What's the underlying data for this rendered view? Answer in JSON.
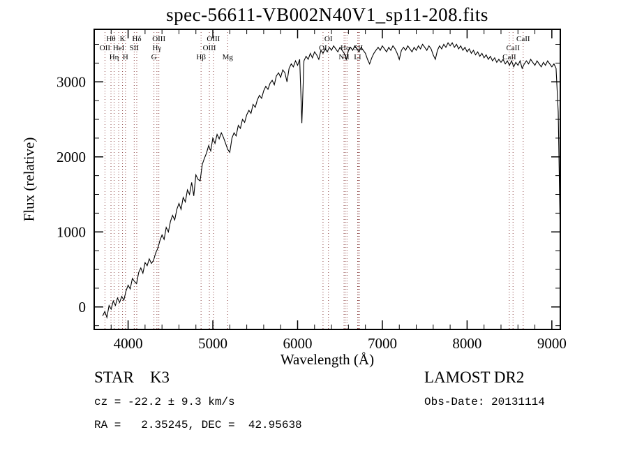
{
  "title": "spec-56611-VB002N40V1_sp11-208.fits",
  "chart_data": {
    "type": "line",
    "title": "spec-56611-VB002N40V1_sp11-208.fits",
    "xlabel": "Wavelength (Å)",
    "ylabel": "Flux (relative)",
    "xlim": [
      3600,
      9100
    ],
    "ylim": [
      -300,
      3700
    ],
    "x_ticks": [
      4000,
      5000,
      6000,
      7000,
      8000,
      9000
    ],
    "y_ticks": [
      0,
      1000,
      2000,
      3000
    ],
    "x_minor_step": 200,
    "y_minor_step": 250,
    "line_color": "#000000",
    "marker_color": "#8b4040",
    "x_start": 3700,
    "x_step": 25,
    "flux": [
      -120,
      -60,
      -140,
      20,
      -30,
      80,
      20,
      120,
      60,
      140,
      90,
      210,
      290,
      240,
      380,
      340,
      310,
      460,
      520,
      450,
      590,
      550,
      640,
      580,
      620,
      720,
      780,
      880,
      960,
      900,
      1060,
      1000,
      1140,
      1220,
      1160,
      1300,
      1380,
      1300,
      1460,
      1400,
      1560,
      1500,
      1660,
      1480,
      1760,
      1700,
      1680,
      1900,
      1980,
      2050,
      2150,
      2080,
      2250,
      2180,
      2300,
      2240,
      2320,
      2260,
      2180,
      2100,
      2060,
      2250,
      2320,
      2280,
      2420,
      2380,
      2500,
      2460,
      2560,
      2620,
      2580,
      2700,
      2660,
      2760,
      2820,
      2780,
      2880,
      2940,
      2900,
      2980,
      3020,
      2960,
      3080,
      3120,
      3060,
      3160,
      3120,
      3000,
      3180,
      3240,
      3200,
      3280,
      3220,
      3300,
      2450,
      3280,
      3340,
      3300,
      3380,
      3320,
      3400,
      3360,
      3300,
      3420,
      3380,
      3440,
      3400,
      3460,
      3420,
      3480,
      3440,
      3400,
      3460,
      3420,
      3380,
      3300,
      3420,
      3460,
      3420,
      3480,
      3440,
      3400,
      3460,
      3420,
      3380,
      3300,
      3240,
      3320,
      3380,
      3420,
      3460,
      3420,
      3480,
      3440,
      3400,
      3460,
      3420,
      3480,
      3440,
      3380,
      3300,
      3420,
      3460,
      3420,
      3480,
      3440,
      3400,
      3460,
      3420,
      3480,
      3440,
      3500,
      3460,
      3420,
      3480,
      3440,
      3360,
      3300,
      3420,
      3480,
      3440,
      3500,
      3460,
      3520,
      3480,
      3520,
      3460,
      3500,
      3440,
      3480,
      3420,
      3460,
      3400,
      3440,
      3380,
      3420,
      3360,
      3400,
      3340,
      3380,
      3320,
      3360,
      3300,
      3340,
      3280,
      3320,
      3260,
      3300,
      3260,
      3300,
      3240,
      3280,
      3220,
      3280,
      3200,
      3260,
      3220,
      3280,
      3180,
      3240,
      3280,
      3240,
      3300,
      3260,
      3220,
      3280,
      3240,
      3200,
      3260,
      3220,
      3280,
      3240,
      3200,
      3240,
      3180,
      2600,
      900
    ],
    "spectral_lines": [
      {
        "label": "OII",
        "wavelength": 3727,
        "row": 2
      },
      {
        "label": "Hθ",
        "wavelength": 3798,
        "row": 1
      },
      {
        "label": "Hη",
        "wavelength": 3835,
        "row": 3
      },
      {
        "label": "HeI",
        "wavelength": 3889,
        "row": 2
      },
      {
        "label": "K",
        "wavelength": 3934,
        "row": 1
      },
      {
        "label": "H",
        "wavelength": 3969,
        "row": 3
      },
      {
        "label": "SII",
        "wavelength": 4072,
        "row": 2
      },
      {
        "label": "Hδ",
        "wavelength": 4102,
        "row": 1
      },
      {
        "label": "G",
        "wavelength": 4305,
        "row": 3
      },
      {
        "label": "Hγ",
        "wavelength": 4340,
        "row": 2
      },
      {
        "label": "OIII",
        "wavelength": 4363,
        "row": 1
      },
      {
        "label": "Hβ",
        "wavelength": 4861,
        "row": 3
      },
      {
        "label": "OIII",
        "wavelength": 4959,
        "row": 2
      },
      {
        "label": "OIII",
        "wavelength": 5007,
        "row": 1
      },
      {
        "label": "Mg",
        "wavelength": 5175,
        "row": 3
      },
      {
        "label": "OI",
        "wavelength": 6300,
        "row": 2
      },
      {
        "label": "OI",
        "wavelength": 6364,
        "row": 1
      },
      {
        "label": "NII",
        "wavelength": 6548,
        "row": 3
      },
      {
        "label": "Hα",
        "wavelength": 6563,
        "row": 2
      },
      {
        "label": "",
        "wavelength": 6583,
        "row": 0
      },
      {
        "label": "LI",
        "wavelength": 6708,
        "row": 3
      },
      {
        "label": "SII",
        "wavelength": 6717,
        "row": 2
      },
      {
        "label": "",
        "wavelength": 6731,
        "row": 0
      },
      {
        "label": "CaII",
        "wavelength": 8498,
        "row": 3
      },
      {
        "label": "CaII",
        "wavelength": 8542,
        "row": 2
      },
      {
        "label": "CaII",
        "wavelength": 8662,
        "row": 1
      }
    ]
  },
  "annotations": {
    "class_label": "STAR    K3",
    "cz": "cz = -22.2 ± 9.3 km/s",
    "radec": "RA =   2.35245, DEC =  42.95638",
    "survey": "LAMOST DR2",
    "obs_date": "Obs-Date: 20131114"
  }
}
